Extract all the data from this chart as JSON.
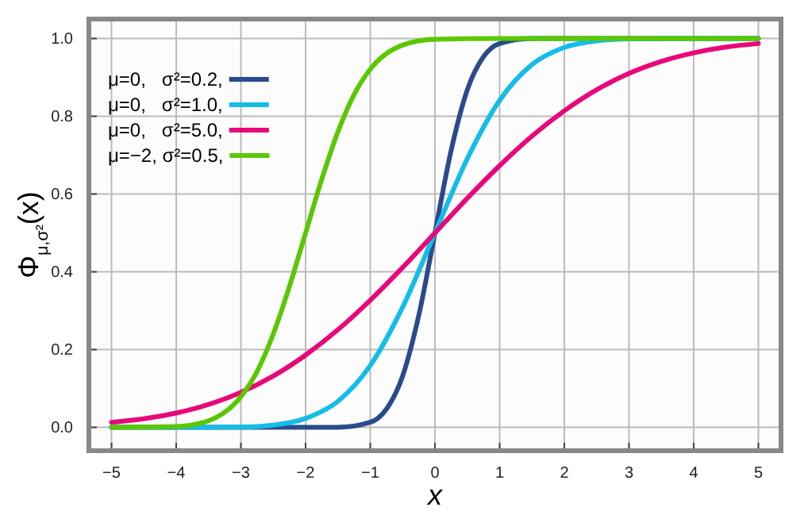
{
  "chart_data": {
    "type": "line",
    "xlabel": "x",
    "ylabel": "Φ$_{μ,σ²}$(x)",
    "xlim": [
      -5.35,
      5.35
    ],
    "ylim": [
      -0.06,
      1.05
    ],
    "xticks": [
      {
        "value": -5,
        "label": "−5"
      },
      {
        "value": -4,
        "label": "−4"
      },
      {
        "value": -3,
        "label": "−3"
      },
      {
        "value": -2,
        "label": "−2"
      },
      {
        "value": -1,
        "label": "−1"
      },
      0,
      1,
      2,
      3,
      4,
      5
    ],
    "yticks": [
      {
        "value": 0,
        "label": "0.0"
      },
      {
        "value": 0.2,
        "label": "0.2"
      },
      {
        "value": 0.4,
        "label": "0.4"
      },
      {
        "value": 0.6,
        "label": "0.6"
      },
      {
        "value": 0.8,
        "label": "0.8"
      },
      {
        "value": 1,
        "label": "1.0"
      }
    ],
    "grid": true,
    "legend": "top left",
    "marker": "none",
    "line_style": "solid",
    "series": [
      {
        "name": "μ=0,   σ²=0.2,",
        "color": "#2a4a8c",
        "x": [
          -5,
          -2,
          -1.5,
          -1,
          -0.75,
          -0.5,
          -0.25,
          0,
          0.25,
          0.5,
          0.75,
          1,
          1.5,
          2,
          5
        ],
        "values": [
          0,
          0,
          0,
          0.013,
          0.047,
          0.132,
          0.288,
          0.5,
          0.712,
          0.868,
          0.953,
          0.987,
          1,
          1,
          1
        ]
      },
      {
        "name": "μ=0,   σ²=1.0,",
        "color": "#14bde8",
        "x": [
          -5,
          -4,
          -3,
          -2.5,
          -2,
          -1.5,
          -1,
          -0.5,
          0,
          0.5,
          1,
          1.5,
          2,
          2.5,
          3,
          4,
          5
        ],
        "values": [
          0,
          0,
          0.001,
          0.006,
          0.023,
          0.067,
          0.159,
          0.309,
          0.5,
          0.691,
          0.841,
          0.933,
          0.977,
          0.994,
          0.999,
          1,
          1
        ]
      },
      {
        "name": "μ=0,   σ²=5.0,",
        "color": "#e8087a",
        "x": [
          -5,
          -4.5,
          -4,
          -3.5,
          -3,
          -2.5,
          -2,
          -1.5,
          -1,
          -0.5,
          0,
          0.5,
          1,
          1.5,
          2,
          2.5,
          3,
          3.5,
          4,
          4.5,
          5
        ],
        "values": [
          0.013,
          0.022,
          0.037,
          0.059,
          0.09,
          0.132,
          0.186,
          0.251,
          0.327,
          0.411,
          0.5,
          0.589,
          0.673,
          0.749,
          0.814,
          0.868,
          0.91,
          0.941,
          0.963,
          0.978,
          0.987
        ]
      },
      {
        "name": "μ=−2, σ²=0.5,",
        "color": "#5ac800",
        "x": [
          -5,
          -4,
          -3.5,
          -3,
          -2.75,
          -2.5,
          -2.25,
          -2,
          -1.75,
          -1.5,
          -1.25,
          -1,
          -0.5,
          0,
          1,
          5
        ],
        "values": [
          0,
          0.002,
          0.017,
          0.079,
          0.144,
          0.24,
          0.362,
          0.5,
          0.638,
          0.76,
          0.856,
          0.921,
          0.983,
          0.998,
          1,
          1
        ]
      }
    ]
  }
}
